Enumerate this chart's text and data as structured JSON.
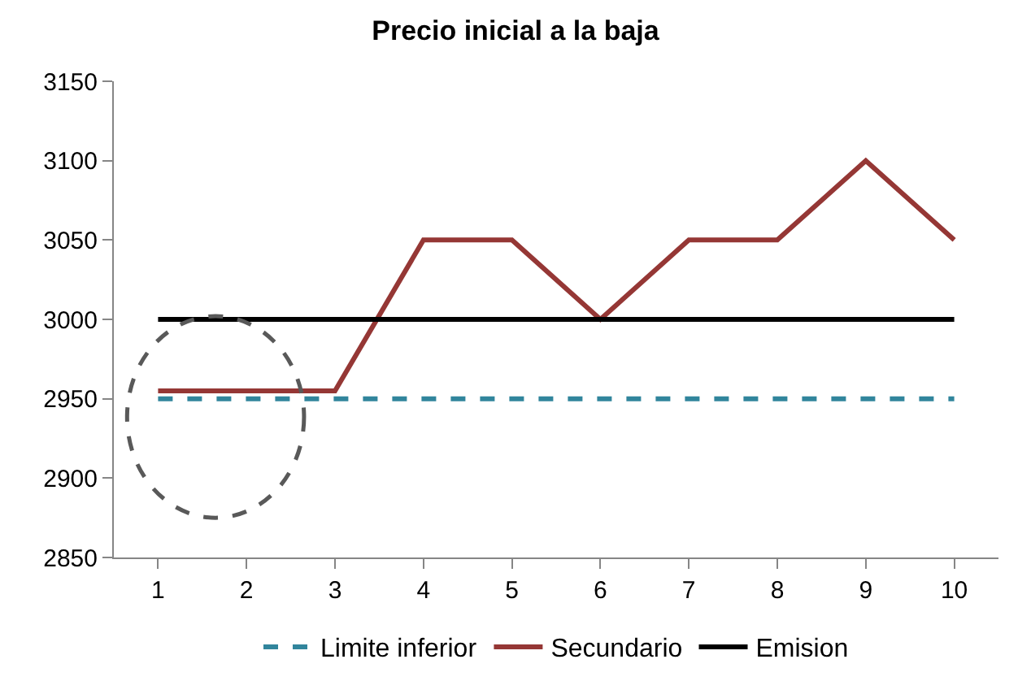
{
  "chart_data": {
    "type": "line",
    "title": "Precio inicial a la baja",
    "categories": [
      "1",
      "2",
      "3",
      "4",
      "5",
      "6",
      "7",
      "8",
      "9",
      "10"
    ],
    "series": [
      {
        "name": "Limite inferior",
        "color": "#31859c",
        "line_style": "dashed",
        "values": [
          2950,
          2950,
          2950,
          2950,
          2950,
          2950,
          2950,
          2950,
          2950,
          2950
        ]
      },
      {
        "name": "Secundario",
        "color": "#953735",
        "line_style": "solid",
        "values": [
          2955,
          2955,
          2955,
          3050,
          3050,
          3000,
          3050,
          3050,
          3100,
          3050
        ]
      },
      {
        "name": "Emision",
        "color": "#000000",
        "line_style": "solid",
        "values": [
          3000,
          3000,
          3000,
          3000,
          3000,
          3000,
          3000,
          3000,
          3000,
          3000
        ]
      }
    ],
    "ylim": [
      2850,
      3150
    ],
    "yticks": [
      2850,
      2900,
      2950,
      3000,
      3050,
      3100,
      3150
    ],
    "grid": false,
    "legend": "bottom",
    "marker": "none"
  }
}
